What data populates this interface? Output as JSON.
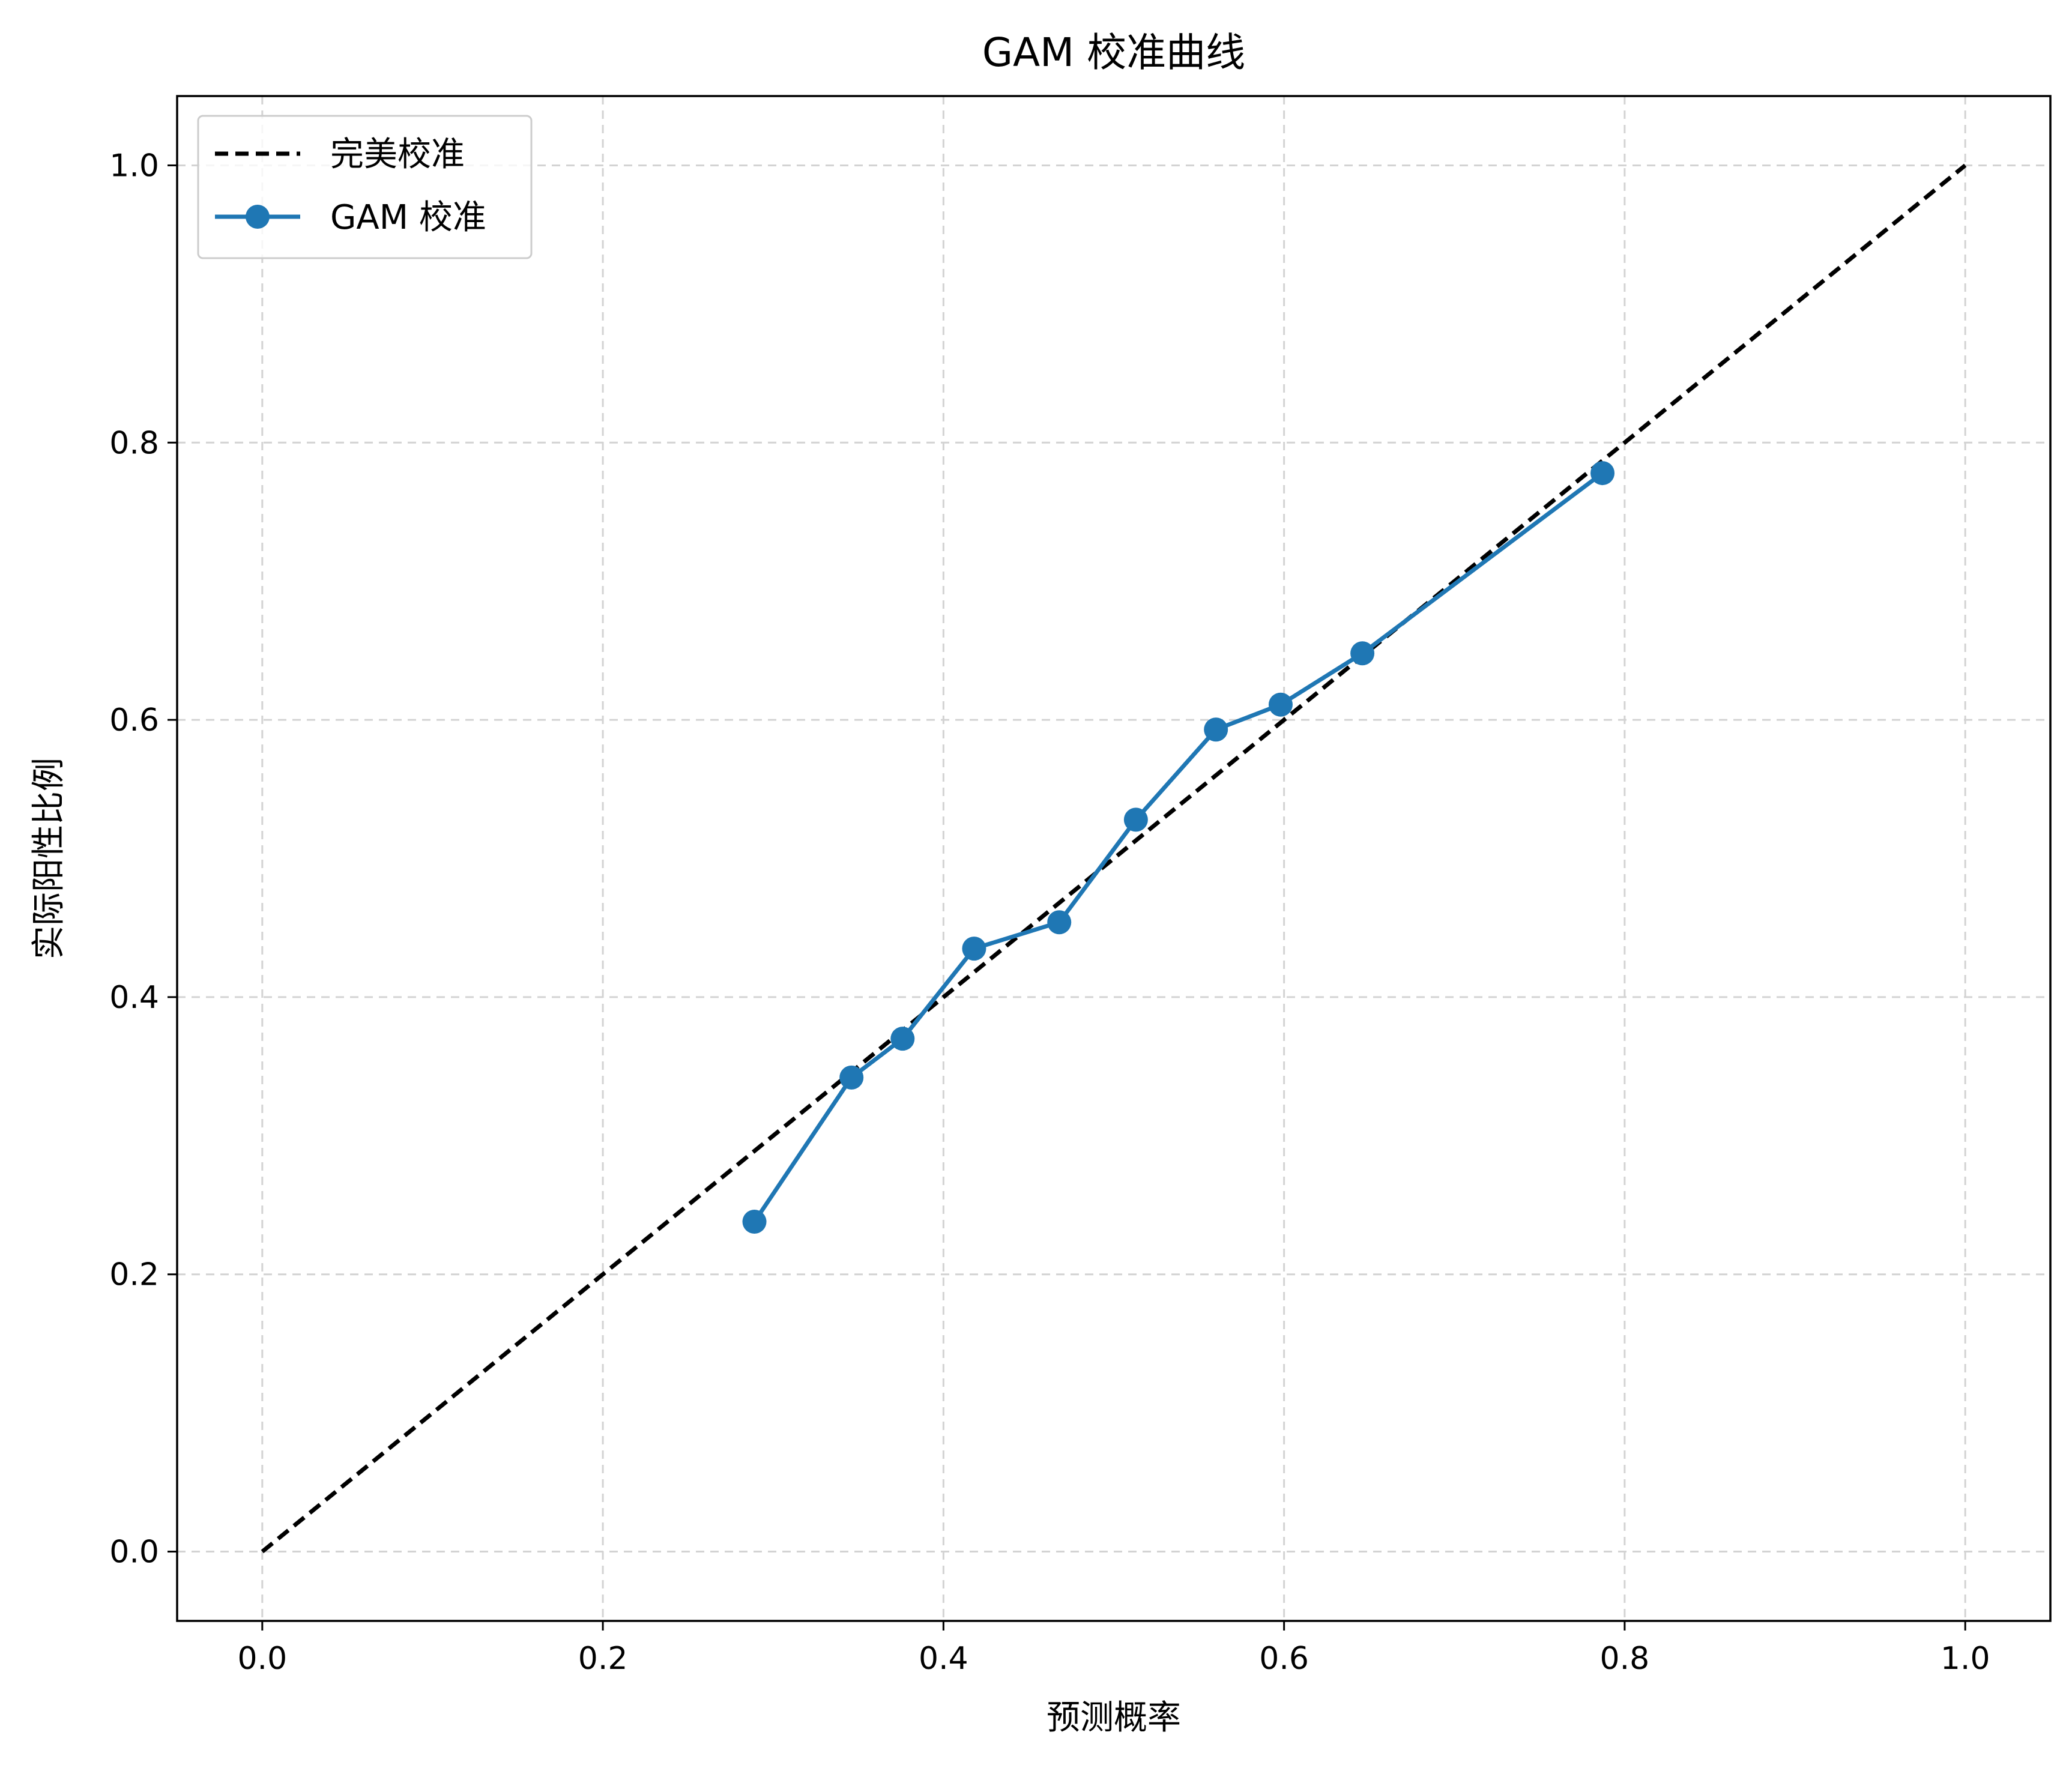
{
  "chart_data": {
    "type": "line",
    "title": "GAM 校准曲线",
    "xlabel": "预测概率",
    "ylabel": "实际阳性比例",
    "xlim": [
      -0.05,
      1.05
    ],
    "ylim": [
      -0.05,
      1.05
    ],
    "x_ticks": [
      "0.0",
      "0.2",
      "0.4",
      "0.6",
      "0.8",
      "1.0"
    ],
    "y_ticks": [
      "0.0",
      "0.2",
      "0.4",
      "0.6",
      "0.8",
      "1.0"
    ],
    "grid": true,
    "legend_position": "top-left",
    "series": [
      {
        "name": "完美校准",
        "style": "dashed",
        "color": "#000000",
        "x": [
          0.0,
          1.0
        ],
        "y": [
          0.0,
          1.0
        ]
      },
      {
        "name": "GAM 校准",
        "style": "solid-marker",
        "color": "#1f77b4",
        "x": [
          0.289,
          0.346,
          0.376,
          0.418,
          0.468,
          0.513,
          0.56,
          0.598,
          0.646,
          0.787
        ],
        "y": [
          0.238,
          0.342,
          0.37,
          0.435,
          0.454,
          0.528,
          0.593,
          0.611,
          0.648,
          0.778
        ]
      }
    ]
  }
}
